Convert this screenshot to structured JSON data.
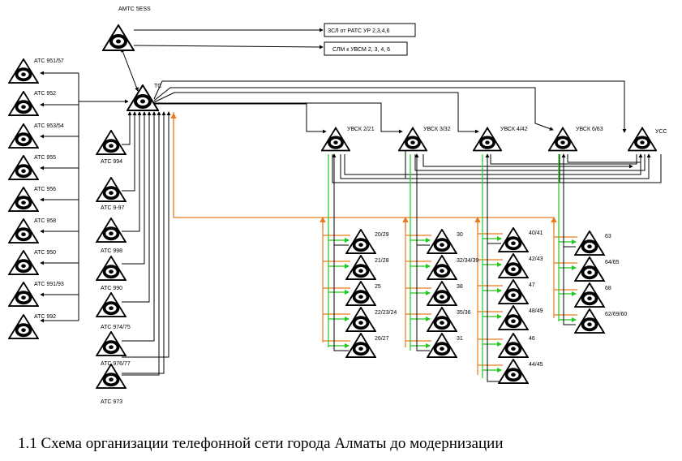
{
  "caption": "1.1 Схема организации телефонной сети города Алматы до модернизации",
  "nodes": {
    "amts": "АМТС 5ESS",
    "ts": "ТС",
    "usk21": "УВСК 2/21",
    "usk332": "УВСК 3/32",
    "usk442": "УВСК 4/42",
    "usk663": "УВСК 6/63",
    "uss": "УСС",
    "left_col": [
      "АТС 951/57",
      "АТС 952",
      "АТС 953/54",
      "АТС 955",
      "АТС 956",
      "АТС 958",
      "АТС 950",
      "АТС 991/93",
      "АТС 992"
    ],
    "mid_col": [
      "АТС 994",
      "АТС 9-97",
      "АТС 998",
      "АТС 990",
      "АТС 974/75",
      "АТС 976/77",
      "АТС 973"
    ],
    "g1": [
      "20/29",
      "21/28",
      "25",
      "22/23/24",
      "26/27"
    ],
    "g2": [
      "30",
      "32/34/39",
      "38",
      "35/36",
      "31"
    ],
    "g3": [
      "40/41",
      "42/43",
      "47",
      "48/49",
      "46",
      "44/45"
    ],
    "g4": [
      "63",
      "64/65",
      "68",
      "62/69/60"
    ]
  },
  "boxes": {
    "zsl": "ЗСЛ от РАТС УР 2,3,4,6",
    "slm": "СЛМ к УВСМ 2, 3, 4, 6"
  }
}
